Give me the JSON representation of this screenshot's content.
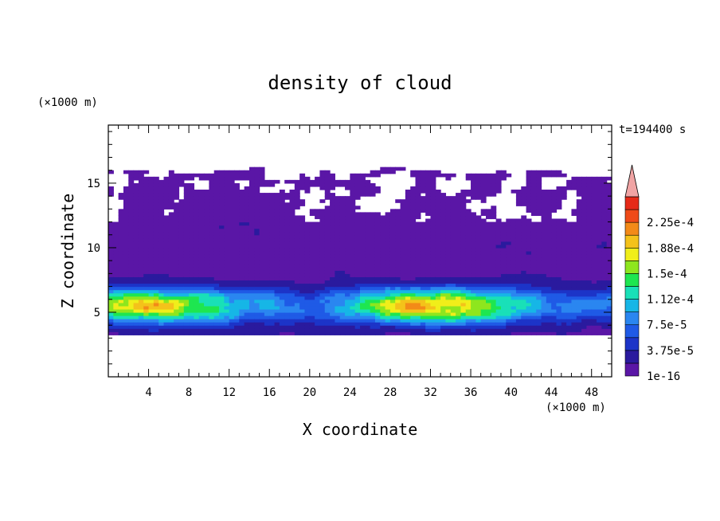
{
  "chart_data": {
    "type": "heatmap",
    "title": "density of cloud",
    "time_label": "t=194400 s",
    "xlabel": "X coordinate",
    "ylabel": "Z coordinate",
    "x_unit": "(×1000 m)",
    "y_unit": "(×1000 m)",
    "xlim": [
      0,
      50
    ],
    "ylim": [
      0,
      19.5
    ],
    "x_ticks": [
      4,
      8,
      12,
      16,
      20,
      24,
      28,
      32,
      36,
      40,
      44,
      48
    ],
    "y_ticks": [
      5,
      10,
      15
    ],
    "colorbar": {
      "labels": [
        "1e-16",
        "3.75e-5",
        "7.5e-5",
        "1.12e-4",
        "1.5e-4",
        "1.88e-4",
        "2.25e-4"
      ],
      "levels": [
        1e-16,
        1.875e-05,
        3.75e-05,
        5.625e-05,
        7.5e-05,
        9.375e-05,
        0.0001125,
        0.00013125,
        0.00015,
        0.00016875,
        0.0001875,
        0.00020625,
        0.000225,
        0.00024375
      ],
      "colors": [
        "#5a16a6",
        "#2a1a9e",
        "#1c34c8",
        "#1f5ae6",
        "#2a86f0",
        "#16b6e6",
        "#19e0b8",
        "#1ee650",
        "#8ee61e",
        "#f0ee1a",
        "#f4c21a",
        "#f38a18",
        "#ef4a18",
        "#e62a18"
      ],
      "overflow_color": "#f0a4a4"
    },
    "bands": {
      "high_cloud_z": [
        12,
        16.5
      ],
      "low_cloud_z": [
        3.2,
        12
      ],
      "peak_z": [
        4.5,
        6.5
      ],
      "peak_max": 0.0002
    }
  }
}
